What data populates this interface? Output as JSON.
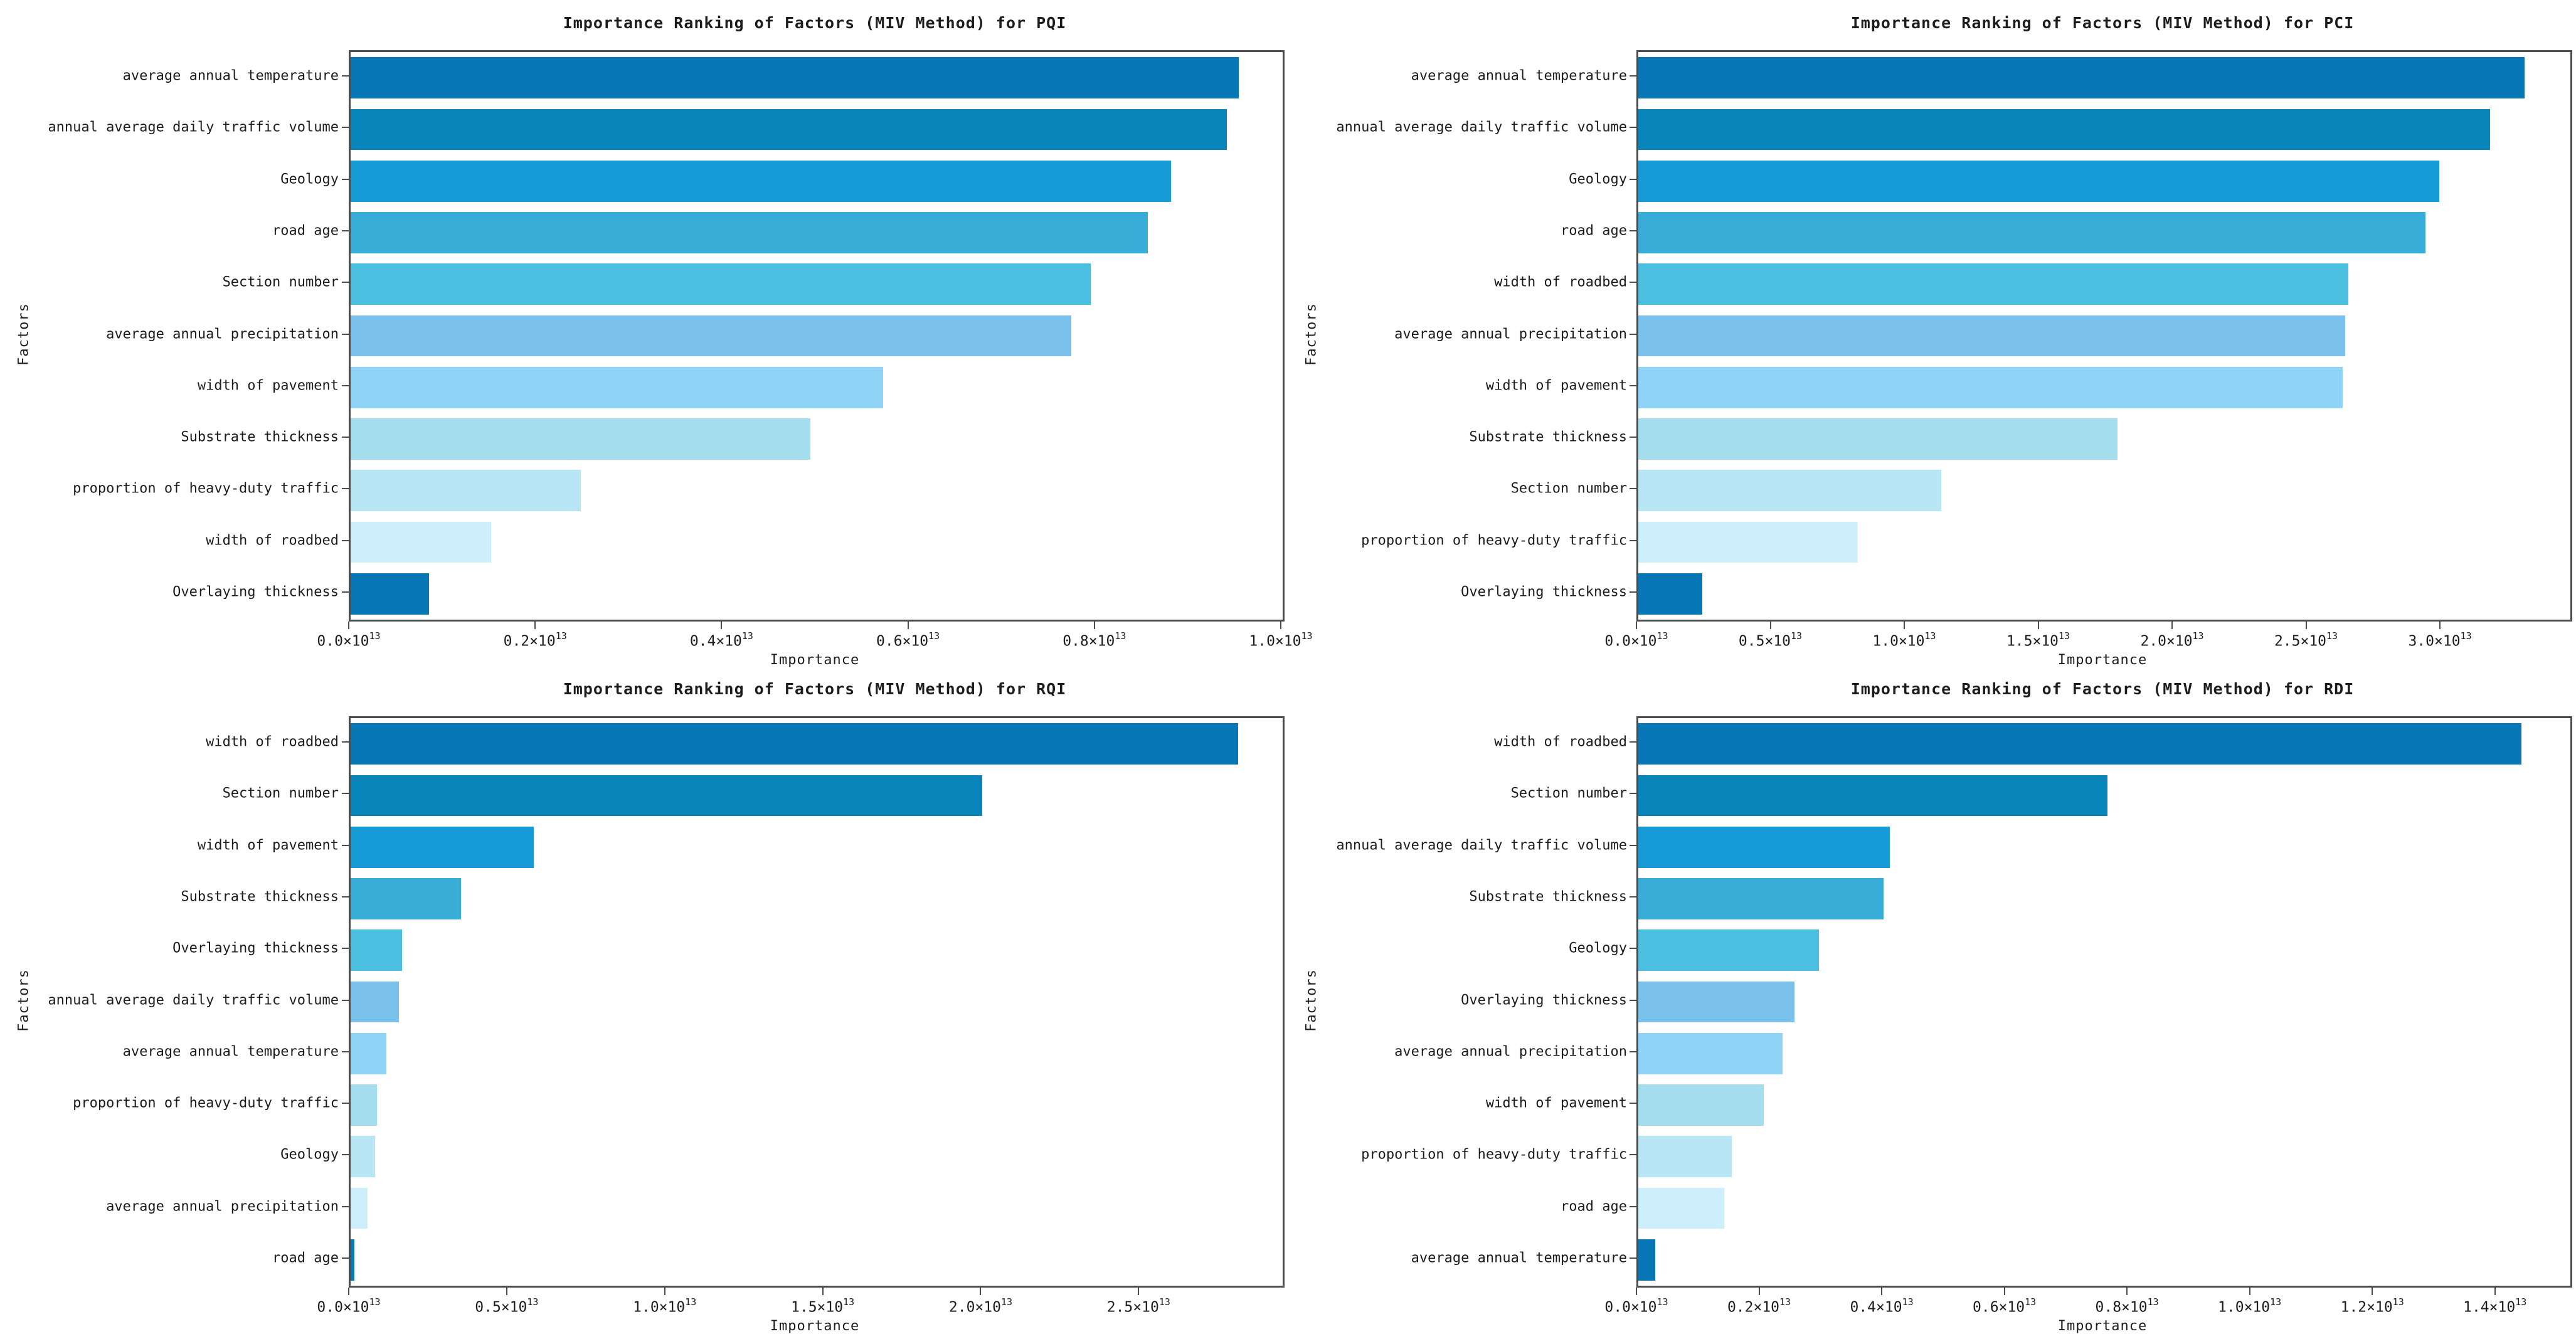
{
  "page": {
    "background": "#ffffff"
  },
  "palette": [
    "#0777b6",
    "#0885ba",
    "#169bd7",
    "#38add8",
    "#4bbfe0",
    "#79c1ea",
    "#8fd4f6",
    "#a3ddee",
    "#b8e6f4",
    "#cceffb",
    "#0777b6"
  ],
  "axis": {
    "tick_base": "×10",
    "exponent": "13"
  },
  "chart_data": [
    {
      "type": "bar",
      "orientation": "horizontal",
      "title": "Importance Ranking of Factors (MIV Method) for PQI",
      "xlabel": "Importance",
      "ylabel": "Factors",
      "categories": [
        "average annual temperature",
        "annual average daily traffic volume",
        "Geology",
        "road age",
        "Section number",
        "average annual precipitation",
        "width of pavement",
        "Substrate thickness",
        "proportion of heavy-duty traffic",
        "width of roadbed",
        "Overlaying thickness"
      ],
      "values": [
        0.953,
        0.94,
        0.88,
        0.855,
        0.794,
        0.773,
        0.571,
        0.493,
        0.247,
        0.151,
        0.084
      ],
      "value_unit": "1e13",
      "xticks": [
        0.0,
        0.2,
        0.4,
        0.6,
        0.8,
        1.0
      ],
      "xlim": [
        0,
        1.0
      ],
      "grid": false,
      "legend": false
    },
    {
      "type": "bar",
      "orientation": "horizontal",
      "title": "Importance Ranking of Factors (MIV Method) for PCI",
      "xlabel": "Importance",
      "ylabel": "Factors",
      "categories": [
        "average annual temperature",
        "annual average daily traffic volume",
        "Geology",
        "road age",
        "width of roadbed",
        "average annual precipitation",
        "width of pavement",
        "Substrate thickness",
        "Section number",
        "proportion of heavy-duty traffic",
        "Overlaying thickness"
      ],
      "values": [
        3.31,
        3.18,
        2.99,
        2.94,
        2.65,
        2.64,
        2.63,
        1.79,
        1.13,
        0.82,
        0.24
      ],
      "value_unit": "1e13",
      "xticks": [
        0.0,
        0.5,
        1.0,
        1.5,
        2.0,
        2.5,
        3.0
      ],
      "xlim": [
        0,
        3.48
      ],
      "grid": false,
      "legend": false
    },
    {
      "type": "bar",
      "orientation": "horizontal",
      "title": "Importance Ranking of Factors (MIV Method) for RQI",
      "xlabel": "Importance",
      "ylabel": "Factors",
      "categories": [
        "width of roadbed",
        "Section number",
        "width of pavement",
        "Substrate thickness",
        "Overlaying thickness",
        "annual average daily traffic volume",
        "average annual temperature",
        "proportion of heavy-duty traffic",
        "Geology",
        "average annual precipitation",
        "road age"
      ],
      "values": [
        2.81,
        2.0,
        0.58,
        0.35,
        0.163,
        0.153,
        0.114,
        0.084,
        0.078,
        0.053,
        0.012
      ],
      "value_unit": "1e13",
      "xticks": [
        0.0,
        0.5,
        1.0,
        1.5,
        2.0,
        2.5
      ],
      "xlim": [
        0,
        2.95
      ],
      "grid": false,
      "legend": false
    },
    {
      "type": "bar",
      "orientation": "horizontal",
      "title": "Importance Ranking of Factors (MIV Method) for RDI",
      "xlabel": "Importance",
      "ylabel": "Factors",
      "categories": [
        "width of roadbed",
        "Section number",
        "annual average daily traffic volume",
        "Substrate thickness",
        "Geology",
        "Overlaying thickness",
        "average annual precipitation",
        "width of pavement",
        "proportion of heavy-duty traffic",
        "road age",
        "average annual temperature"
      ],
      "values": [
        1.44,
        0.765,
        0.41,
        0.4,
        0.295,
        0.255,
        0.235,
        0.205,
        0.152,
        0.14,
        0.028
      ],
      "value_unit": "1e13",
      "xticks": [
        0.0,
        0.2,
        0.4,
        0.6,
        0.8,
        1.0,
        1.2,
        1.4
      ],
      "xlim": [
        0,
        1.52
      ],
      "grid": false,
      "legend": false
    }
  ]
}
